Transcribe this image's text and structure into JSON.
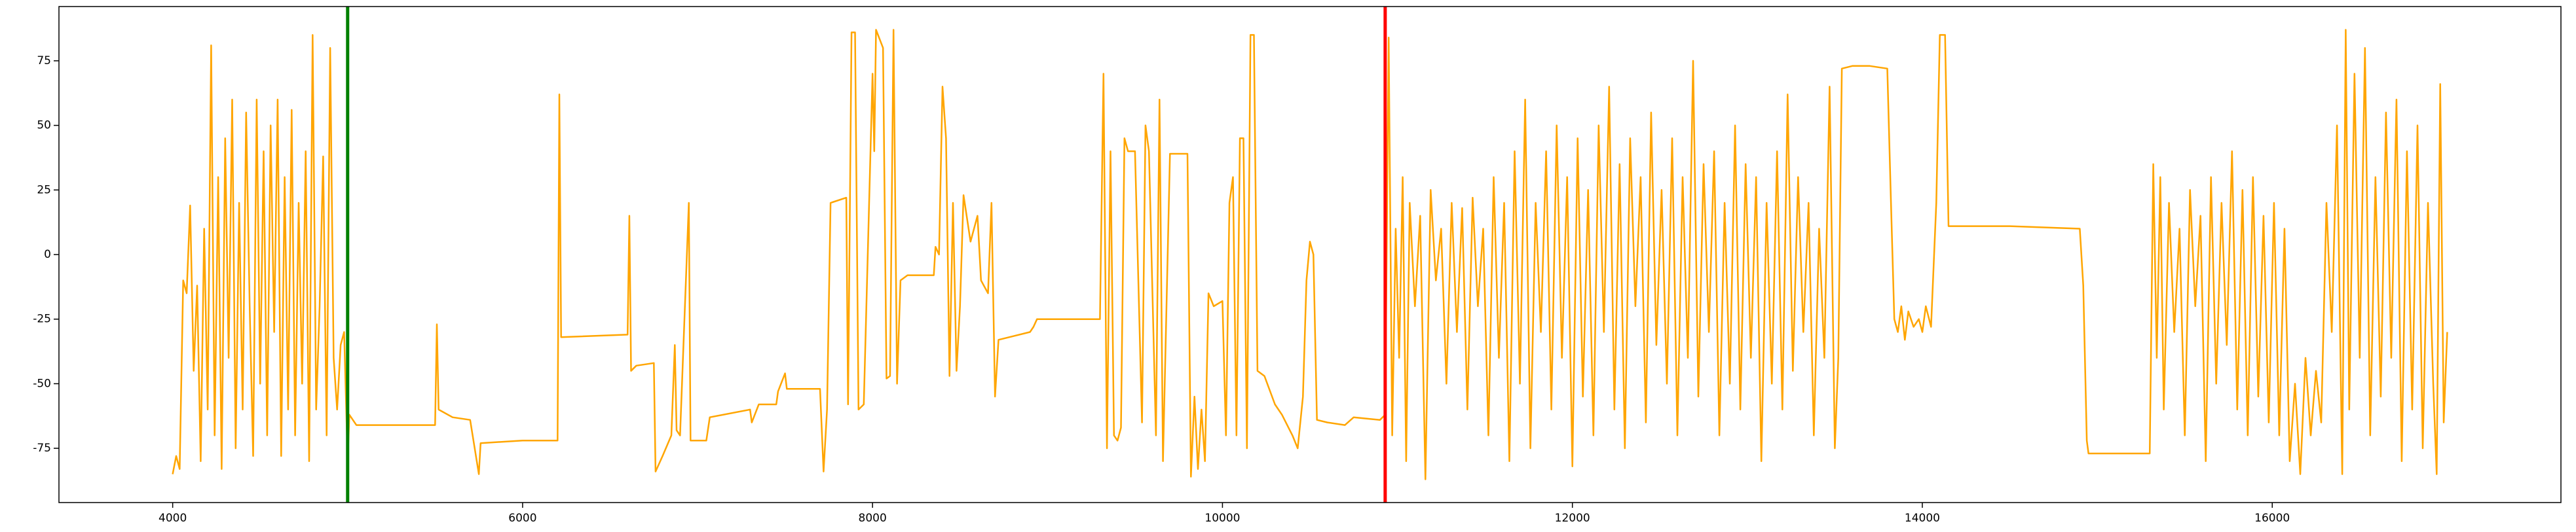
{
  "chart_data": {
    "type": "line",
    "xlim": [
      3350,
      17650
    ],
    "ylim": [
      -96,
      96
    ],
    "xticks": [
      4000,
      6000,
      8000,
      10000,
      12000,
      14000,
      16000
    ],
    "yticks": [
      -75,
      -50,
      -25,
      0,
      25,
      50,
      75
    ],
    "vlines": [
      {
        "x": 5000,
        "color": "green"
      },
      {
        "x": 10930,
        "color": "red"
      }
    ],
    "x": [
      4000,
      4020,
      4040,
      4060,
      4080,
      4100,
      4120,
      4140,
      4160,
      4180,
      4200,
      4220,
      4240,
      4260,
      4280,
      4300,
      4320,
      4340,
      4360,
      4380,
      4400,
      4420,
      4440,
      4460,
      4480,
      4500,
      4520,
      4540,
      4560,
      4580,
      4600,
      4620,
      4640,
      4660,
      4680,
      4700,
      4720,
      4740,
      4760,
      4780,
      4800,
      4820,
      4840,
      4860,
      4880,
      4900,
      4920,
      4940,
      4960,
      4980,
      5000,
      5010,
      5050,
      5500,
      5510,
      5520,
      5600,
      5700,
      5750,
      5760,
      6000,
      6200,
      6210,
      6220,
      6600,
      6610,
      6620,
      6650,
      6750,
      6760,
      6800,
      6850,
      6870,
      6880,
      6900,
      6950,
      6960,
      7050,
      7070,
      7300,
      7310,
      7350,
      7450,
      7460,
      7500,
      7510,
      7700,
      7720,
      7740,
      7760,
      7850,
      7860,
      7880,
      7900,
      7920,
      7950,
      8000,
      8010,
      8020,
      8060,
      8080,
      8100,
      8120,
      8140,
      8160,
      8200,
      8350,
      8360,
      8380,
      8400,
      8420,
      8440,
      8460,
      8480,
      8500,
      8520,
      8560,
      8600,
      8620,
      8660,
      8680,
      8700,
      8720,
      8900,
      8920,
      8940,
      9300,
      9320,
      9340,
      9360,
      9380,
      9400,
      9420,
      9440,
      9460,
      9500,
      9540,
      9560,
      9580,
      9620,
      9640,
      9660,
      9700,
      9800,
      9820,
      9840,
      9860,
      9880,
      9900,
      9920,
      9950,
      10000,
      10020,
      10040,
      10060,
      10080,
      10100,
      10120,
      10140,
      10160,
      10180,
      10200,
      10240,
      10300,
      10340,
      10400,
      10430,
      10460,
      10480,
      10500,
      10520,
      10540,
      10600,
      10700,
      10750,
      10900,
      10930,
      10950,
      10970,
      10990,
      11010,
      11030,
      11050,
      11070,
      11100,
      11130,
      11160,
      11190,
      11220,
      11250,
      11280,
      11310,
      11340,
      11370,
      11400,
      11430,
      11460,
      11490,
      11520,
      11550,
      11580,
      11610,
      11640,
      11670,
      11700,
      11730,
      11760,
      11790,
      11820,
      11850,
      11880,
      11910,
      11940,
      11970,
      12000,
      12030,
      12060,
      12090,
      12120,
      12150,
      12180,
      12210,
      12240,
      12270,
      12300,
      12330,
      12360,
      12390,
      12420,
      12450,
      12480,
      12510,
      12540,
      12570,
      12600,
      12630,
      12660,
      12690,
      12720,
      12750,
      12780,
      12810,
      12840,
      12870,
      12900,
      12930,
      12960,
      12990,
      13020,
      13050,
      13080,
      13110,
      13140,
      13170,
      13200,
      13230,
      13260,
      13290,
      13320,
      13350,
      13380,
      13410,
      13440,
      13470,
      13500,
      13520,
      13540,
      13600,
      13700,
      13800,
      13820,
      13840,
      13860,
      13880,
      13900,
      13920,
      13950,
      13980,
      14000,
      14020,
      14050,
      14080,
      14100,
      14130,
      14150,
      14500,
      14900,
      14920,
      14940,
      14950,
      15300,
      15320,
      15340,
      15360,
      15380,
      15410,
      15440,
      15470,
      15500,
      15530,
      15560,
      15590,
      15620,
      15650,
      15680,
      15710,
      15740,
      15770,
      15800,
      15830,
      15860,
      15890,
      15920,
      15950,
      15980,
      16010,
      16040,
      16070,
      16100,
      16130,
      16160,
      16190,
      16220,
      16250,
      16280,
      16310,
      16340,
      16370,
      16400,
      16420,
      16440,
      16470,
      16500,
      16530,
      16560,
      16590,
      16620,
      16650,
      16680,
      16710,
      16740,
      16770,
      16800,
      16830,
      16860,
      16890,
      16920,
      16940,
      16960,
      16980,
      17000
    ],
    "series": [
      {
        "color": "orange",
        "values": [
          -85,
          -78,
          -83,
          -10,
          -15,
          19,
          -45,
          -12,
          -80,
          10,
          -60,
          81,
          -70,
          30,
          -83,
          45,
          -40,
          60,
          -75,
          20,
          -60,
          55,
          -20,
          -78,
          60,
          -50,
          40,
          -70,
          50,
          -30,
          60,
          -78,
          30,
          -60,
          56,
          -70,
          20,
          -50,
          40,
          -80,
          85,
          -60,
          -20,
          38,
          -70,
          80,
          -40,
          -60,
          -35,
          -30,
          -80,
          -62,
          -66,
          -66,
          -27,
          -60,
          -63,
          -64,
          -85,
          -73,
          -72,
          -72,
          62,
          -32,
          -31,
          15,
          -45,
          -43,
          -42,
          -84,
          -78,
          -70,
          -35,
          -68,
          -70,
          20,
          -72,
          -72,
          -63,
          -60,
          -65,
          -58,
          -58,
          -53,
          -46,
          -52,
          -52,
          -84,
          -60,
          20,
          22,
          -58,
          86,
          86,
          -60,
          -58,
          70,
          40,
          87,
          80,
          -48,
          -47,
          87,
          -50,
          -10,
          -8,
          -8,
          3,
          0,
          65,
          45,
          -47,
          20,
          -45,
          -20,
          23,
          5,
          15,
          -10,
          -15,
          20,
          -55,
          -33,
          -30,
          -28,
          -25,
          -25,
          70,
          -75,
          40,
          -70,
          -72,
          -67,
          45,
          40,
          40,
          -65,
          50,
          40,
          -70,
          60,
          -80,
          39,
          39,
          -86,
          -55,
          -83,
          -60,
          -80,
          -15,
          -20,
          -18,
          -70,
          20,
          30,
          -70,
          45,
          45,
          -75,
          85,
          85,
          -45,
          -47,
          -58,
          -62,
          -70,
          -75,
          -55,
          -10,
          5,
          0,
          -64,
          -65,
          -66,
          -63,
          -64,
          -62,
          84,
          -70,
          10,
          -40,
          30,
          -80,
          20,
          -20,
          15,
          -87,
          25,
          -10,
          10,
          -50,
          20,
          -30,
          18,
          -60,
          22,
          -20,
          10,
          -70,
          30,
          -40,
          20,
          -80,
          40,
          -50,
          60,
          -75,
          20,
          -30,
          40,
          -60,
          50,
          -40,
          30,
          -82,
          45,
          -55,
          25,
          -70,
          50,
          -30,
          65,
          -60,
          35,
          -75,
          45,
          -20,
          30,
          -65,
          55,
          -35,
          25,
          -50,
          45,
          -70,
          30,
          -40,
          75,
          -55,
          35,
          -30,
          40,
          -70,
          20,
          -50,
          50,
          -60,
          35,
          -40,
          30,
          -80,
          20,
          -50,
          40,
          -60,
          62,
          -45,
          30,
          -30,
          20,
          -70,
          10,
          -40,
          65,
          -75,
          -40,
          72,
          73,
          73,
          72,
          22,
          -25,
          -30,
          -20,
          -33,
          -22,
          -28,
          -25,
          -30,
          -20,
          -28,
          20,
          85,
          85,
          11,
          11,
          10,
          -12,
          -72,
          -77,
          -77,
          35,
          -40,
          30,
          -60,
          20,
          -30,
          10,
          -70,
          25,
          -20,
          15,
          -80,
          30,
          -50,
          20,
          -35,
          40,
          -60,
          25,
          -70,
          30,
          -55,
          15,
          -65,
          20,
          -70,
          10,
          -80,
          -50,
          -85,
          -40,
          -70,
          -45,
          -65,
          20,
          -30,
          50,
          -85,
          87,
          -60,
          70,
          -40,
          80,
          -70,
          30,
          -55,
          55,
          -40,
          60,
          -80,
          40,
          -60,
          50,
          -75,
          20,
          -50,
          -85,
          66,
          -65,
          -30
        ]
      }
    ]
  }
}
